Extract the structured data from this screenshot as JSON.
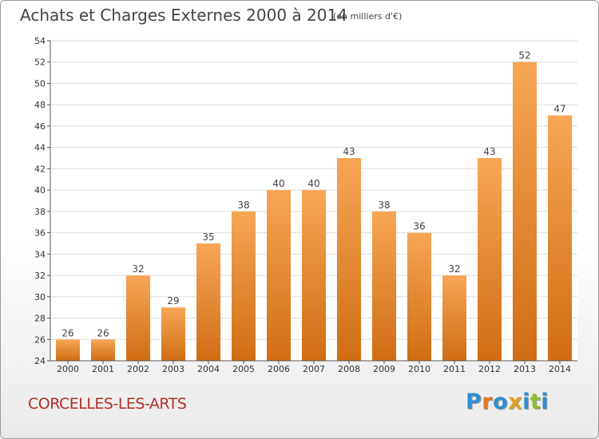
{
  "header": {
    "title": "Achats et Charges Externes 2000 à 2014",
    "unit": "(en milliers d'€)"
  },
  "footer": {
    "place": "CORCELLES-LES-ARTS",
    "logo_letters": [
      {
        "char": "P",
        "color": "#2f8fcf"
      },
      {
        "char": "r",
        "color": "#e07b22"
      },
      {
        "char": "o",
        "color": "#2f8fcf"
      },
      {
        "char": "x",
        "color": "#e0a020"
      },
      {
        "char": "i",
        "color": "#2f8fcf"
      },
      {
        "char": "t",
        "color": "#8bbf2f"
      },
      {
        "char": "i",
        "color": "#2f8fcf"
      }
    ]
  },
  "colors": {
    "bar_light": "#f7a656",
    "bar_dark": "#cf6d14",
    "grid": "#dddddd",
    "axis": "#555555",
    "plot_background": "#ffffff"
  },
  "chart_data": {
    "type": "bar",
    "title": "Achats et Charges Externes 2000 à 2014",
    "subtitle": "(en milliers d'€)",
    "xlabel": "",
    "ylabel": "",
    "categories": [
      "2000",
      "2001",
      "2002",
      "2003",
      "2004",
      "2005",
      "2006",
      "2007",
      "2008",
      "2009",
      "2010",
      "2011",
      "2012",
      "2013",
      "2014"
    ],
    "values": [
      26,
      26,
      32,
      29,
      35,
      38,
      40,
      40,
      43,
      38,
      36,
      32,
      43,
      52,
      47
    ],
    "data_labels": [
      "26",
      "26",
      "32",
      "29",
      "35",
      "38",
      "40",
      "40",
      "43",
      "38",
      "36",
      "32",
      "43",
      "52",
      "47"
    ],
    "ylim": [
      24,
      54
    ],
    "yticks": [
      24,
      26,
      28,
      30,
      32,
      34,
      36,
      38,
      40,
      42,
      44,
      46,
      48,
      50,
      52,
      54
    ],
    "grid": true,
    "legend": "none"
  }
}
